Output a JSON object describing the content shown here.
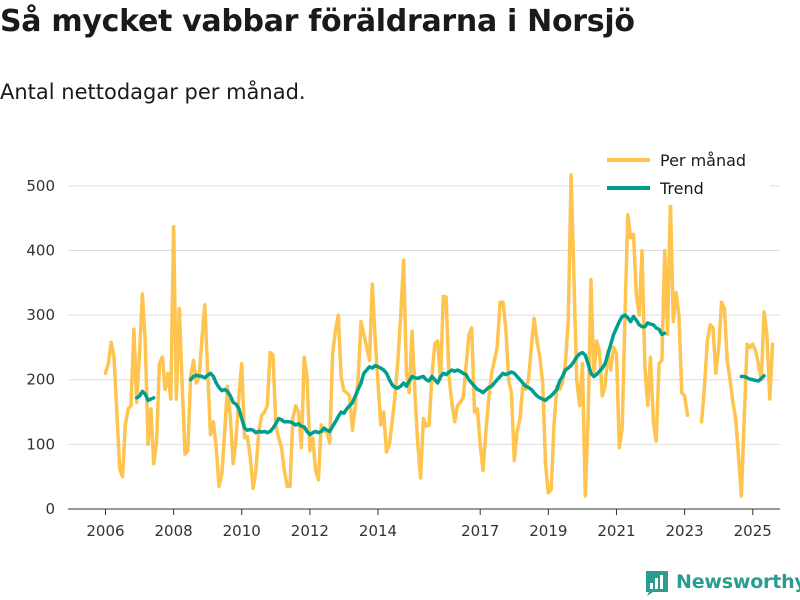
{
  "title": "Så mycket vabbar föräldrarna i Norsjö",
  "subtitle": "Antal nettodagar per månad.",
  "brand": "Newsworthy",
  "colors": {
    "monthly": "#fec44f",
    "trend": "#009e8f",
    "grid": "#dddddd",
    "axis": "#333333",
    "brand": "#2a9d8f"
  },
  "chart_data": {
    "type": "line",
    "title": "Så mycket vabbar föräldrarna i Norsjö",
    "subtitle": "Antal nettodagar per månad.",
    "xlabel": "",
    "ylabel": "",
    "ylim": [
      0,
      540
    ],
    "xlim": [
      2004.9,
      2025.8
    ],
    "y_ticks": [
      0,
      100,
      200,
      300,
      400,
      500
    ],
    "x_ticks": [
      2006,
      2008,
      2010,
      2012,
      2014,
      2017,
      2019,
      2021,
      2023,
      2025
    ],
    "grid": "horizontal",
    "legend_position": "top-right",
    "series": [
      {
        "name": "Per månad",
        "color": "#fec44f",
        "segments": [
          {
            "start": 2006.0,
            "values": [
              210,
              225,
              258,
              235,
              150,
              62,
              50,
              130,
              155,
              160,
              278,
              165,
              240,
              333,
              260,
              100,
              155,
              70,
              105,
              225,
              235,
              185,
              210,
              170,
              437,
              170,
              310,
              195,
              85,
              90,
              205,
              230,
              195,
              205,
              265,
              316,
              210,
              115,
              135,
              95,
              35,
              55,
              120,
              190,
              140,
              70,
              110,
              175,
              225,
              110,
              112,
              80,
              32,
              60,
              120,
              145,
              150,
              160,
              242,
              238,
              130,
              110,
              95,
              60,
              35,
              35,
              140,
              160,
              150,
              95,
              235,
              205,
              90,
              110,
              60,
              45,
              130,
              120,
              120,
              102,
              240,
              275,
              300,
              205,
              183,
              180,
              175,
              122,
              160,
              200,
              290,
              270,
              250,
              230,
              348,
              262,
              195,
              130,
              150,
              88,
              100,
              135,
              175,
              230,
              300,
              385,
              210,
              180,
              275,
              180,
              100,
              48,
              140,
              128,
              130,
              205,
              255,
              260,
              200,
              329,
              328,
              205,
              165,
              135,
              160,
              165,
              172,
              220,
              270,
              280,
              150,
              155,
              100,
              60,
              120,
              170,
              210,
              230,
              250,
              320,
              320,
              280,
              200,
              180,
              75,
              120,
              140,
              190,
              185,
              200,
              250,
              295,
              260,
              235,
              195,
              70,
              25,
              30,
              130,
              190,
              185,
              195,
              225,
              290,
              517,
              360,
              200,
              160,
              225,
              20,
              140,
              355,
              205,
              260,
              245,
              175,
              190,
              245,
              215,
              250,
              240,
              95,
              125,
              300,
              455,
              420,
              425,
              330,
              300,
              400,
              220,
              160,
              235,
              135,
              105,
              225,
              230,
              400,
              270,
              478,
              290,
              335,
              300,
              180,
              175,
              145
            ]
          },
          {
            "start": 2023.5,
            "values": [
              135,
              190,
              260,
              285,
              280,
              210,
              250,
              320,
              310,
              230,
              200,
              165,
              140,
              80,
              20,
              140,
              255,
              250,
              255,
              245,
              225,
              200,
              305,
              270,
              170,
              255
            ]
          }
        ]
      },
      {
        "name": "Trend",
        "color": "#009e8f",
        "segments": [
          {
            "start": 2006.917,
            "values": [
              172,
              175,
              182,
              178,
              168,
              170,
              172
            ]
          },
          {
            "start": 2008.5,
            "values": [
              200,
              205,
              207,
              206,
              205,
              203,
              207,
              210,
              205,
              195,
              188,
              183,
              185,
              182,
              175,
              165,
              162,
              155,
              140,
              125,
              122,
              123,
              122,
              118,
              120,
              119,
              120,
              118,
              120,
              125,
              132,
              140,
              138,
              135,
              135,
              135,
              133,
              130,
              132,
              128,
              127,
              120,
              115,
              118,
              120,
              118,
              120,
              125,
              122,
              120,
              128,
              135,
              143,
              150,
              148,
              155,
              160,
              165,
              175,
              185,
              195,
              210,
              215,
              220,
              218,
              222,
              220,
              218,
              215,
              210,
              200,
              192,
              188,
              187,
              190,
              195,
              190,
              198,
              205,
              203,
              202,
              204,
              205,
              200,
              198,
              205,
              200,
              195,
              205,
              210,
              208,
              212,
              215,
              213,
              215,
              213,
              210,
              208,
              200,
              195,
              190,
              185,
              183,
              180,
              184,
              188,
              190,
              195,
              200,
              205,
              210,
              208,
              210,
              212,
              210,
              205,
              200,
              195,
              190,
              188,
              185,
              180,
              175,
              172,
              170,
              168,
              172,
              175,
              180,
              185,
              198,
              205,
              215,
              218,
              222,
              228,
              235,
              240,
              242,
              238,
              225,
              210,
              205,
              208,
              213,
              218,
              225,
              240,
              255,
              270,
              280,
              290,
              298,
              300,
              296,
              290,
              298,
              292,
              285,
              282,
              282,
              288,
              286,
              285,
              280,
              278,
              270,
              272
            ]
          },
          {
            "start": 2024.667,
            "values": [
              205,
              205,
              203,
              201,
              200,
              199,
              198,
              202,
              206
            ]
          }
        ]
      }
    ]
  }
}
